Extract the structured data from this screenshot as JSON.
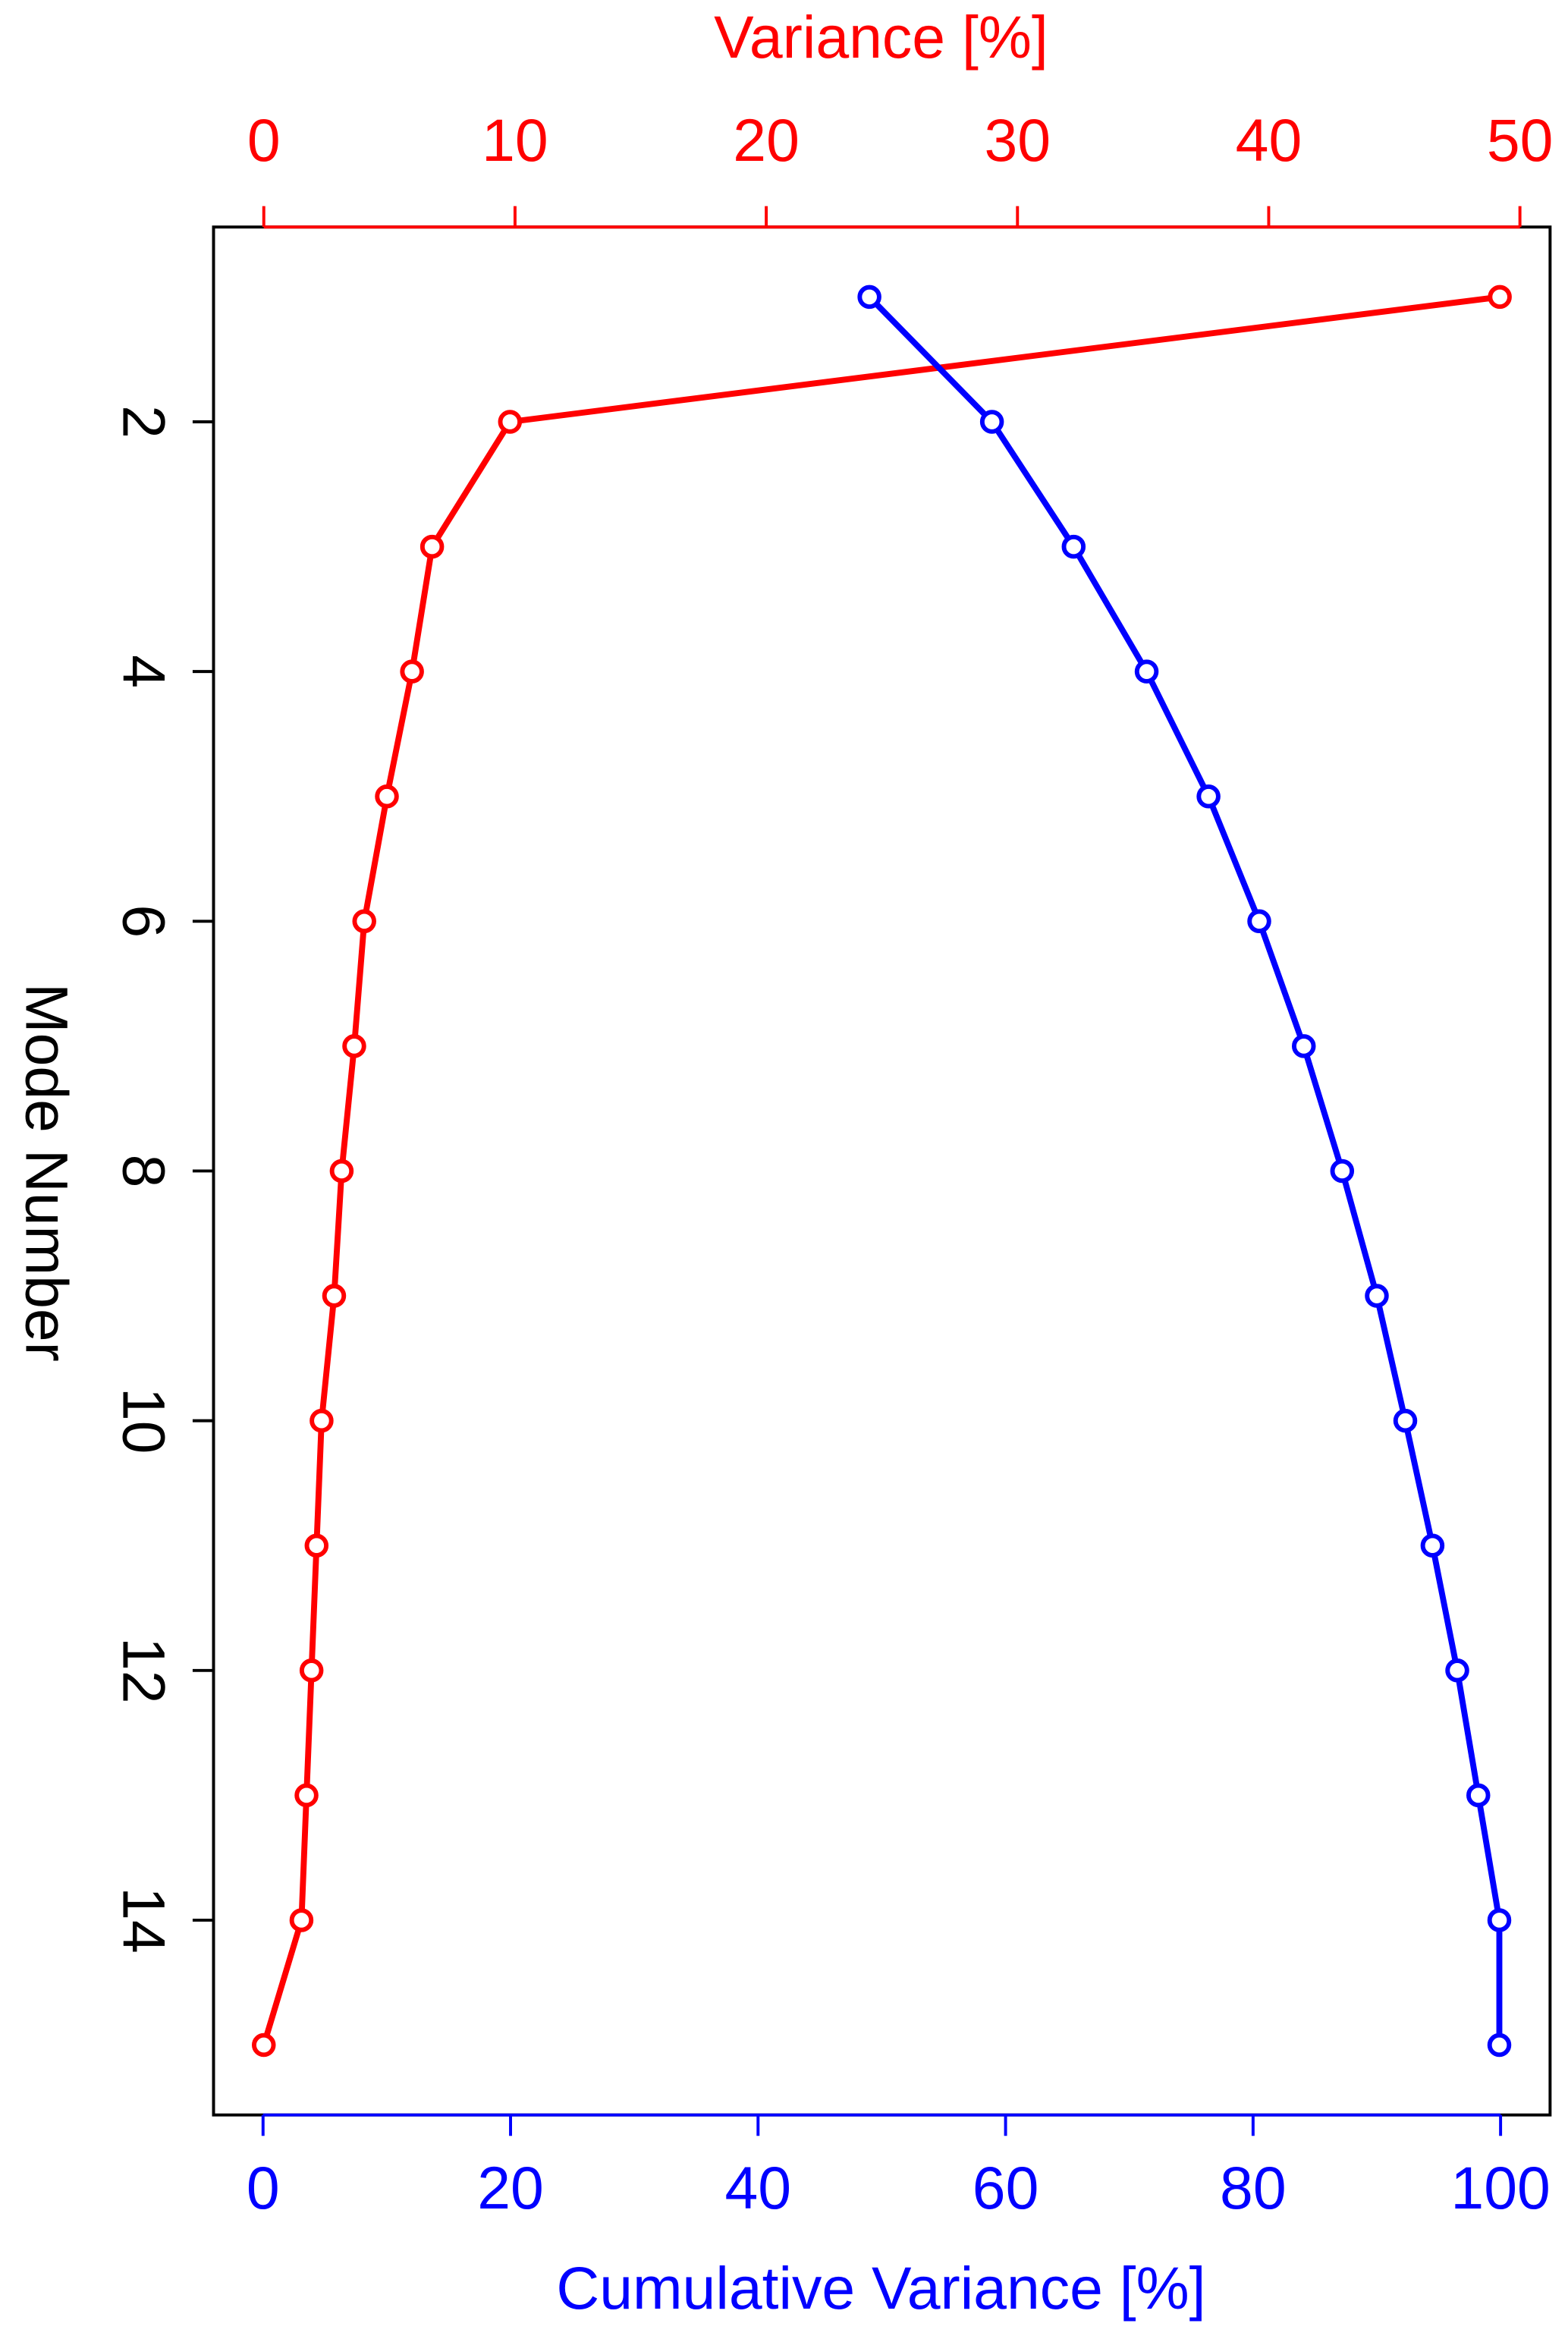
{
  "chart_data": {
    "type": "line",
    "x_label": "Cumulative Variance [%]",
    "x2_label": "Variance [%]",
    "y_label": "Mode Number",
    "y": [
      1,
      2,
      3,
      4,
      5,
      6,
      7,
      8,
      9,
      10,
      11,
      12,
      13,
      14,
      15
    ],
    "series": [
      {
        "color": "#ff0000",
        "axis": "x2",
        "values": [
          49.2,
          9.8,
          6.7,
          5.9,
          4.9,
          4.0,
          3.6,
          3.1,
          2.8,
          2.3,
          2.1,
          1.9,
          1.7,
          1.5,
          0
        ]
      },
      {
        "color": "#0000ff",
        "values": [
          49.0,
          58.9,
          65.5,
          71.4,
          76.4,
          80.5,
          84.1,
          87.2,
          90.0,
          92.3,
          94.5,
          96.5,
          98.2,
          99.9,
          99.9
        ]
      }
    ],
    "xlim": [
      -4,
      104
    ],
    "xticks": [
      0,
      20,
      40,
      60,
      80,
      100
    ],
    "x2lim": [
      -2,
      51.2
    ],
    "x2ticks": [
      0,
      10,
      20,
      30,
      40,
      50
    ],
    "ylim": [
      15.56,
      0.44
    ],
    "yticks": [
      2,
      4,
      6,
      8,
      10,
      12,
      14
    ]
  }
}
